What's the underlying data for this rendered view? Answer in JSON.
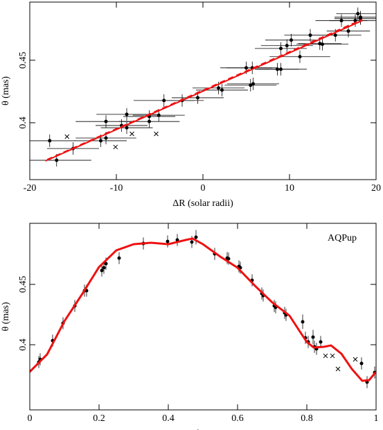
{
  "chart_data": [
    {
      "type": "scatter",
      "x_label": "ΔR (solar radii)",
      "y_label": "θ (mas)",
      "xlim": [
        -20,
        20
      ],
      "ylim": [
        0.3545,
        0.4965
      ],
      "xticks": [
        -20,
        -10,
        0,
        10,
        20
      ],
      "yticks": [
        0.4,
        0.45
      ],
      "series": [
        {
          "style": "dot",
          "color": "#000000",
          "x": [
            -17.7,
            -16.9,
            -15.0,
            -11.8,
            -11.2,
            -11.2,
            -9.4,
            -8.8,
            -8.8,
            -6.2,
            -6.2,
            -5.1,
            -4.5,
            -2.4,
            -0.6,
            1.8,
            2.2,
            5.0,
            5.5,
            5.8,
            5.7,
            8.6,
            9.0,
            9.0,
            9.7,
            10.2,
            11.2,
            12.4,
            13.5,
            13.8,
            15.3,
            16.0,
            16.8,
            17.6,
            17.9,
            18.2,
            18.2
          ],
          "values": [
            0.3856,
            0.37,
            0.3794,
            0.3856,
            0.401,
            0.3878,
            0.3978,
            0.4067,
            0.396,
            0.405,
            0.401,
            0.406,
            0.4178,
            0.4178,
            0.42,
            0.4278,
            0.4261,
            0.4439,
            0.43,
            0.4311,
            0.4439,
            0.4428,
            0.4428,
            0.4594,
            0.4617,
            0.4661,
            0.4528,
            0.47,
            0.4633,
            0.4628,
            0.47,
            0.4817,
            0.4733,
            0.4817,
            0.4872,
            0.4844,
            0.4833
          ],
          "xerr": [
            3,
            4,
            3,
            3,
            3.5,
            3.5,
            3,
            3.5,
            3,
            3,
            3.5,
            3,
            3.5,
            2.5,
            3,
            3,
            3,
            3,
            3,
            3,
            3,
            2.5,
            3,
            3,
            3,
            3,
            3.5,
            3,
            2.5,
            3,
            3,
            3,
            2.5,
            3,
            2.5,
            3,
            3
          ],
          "yerr": [
            0.005,
            0.005,
            0.005,
            0.005,
            0.005,
            0.005,
            0.005,
            0.005,
            0.005,
            0.005,
            0.005,
            0.005,
            0.005,
            0.005,
            0.005,
            0.005,
            0.005,
            0.005,
            0.005,
            0.005,
            0.005,
            0.005,
            0.005,
            0.005,
            0.005,
            0.005,
            0.005,
            0.005,
            0.005,
            0.005,
            0.005,
            0.005,
            0.005,
            0.005,
            0.005,
            0.005,
            0.005
          ]
        },
        {
          "style": "cross",
          "color": "#000000",
          "x": [
            -15.7,
            -10.1,
            -8.2,
            -5.4
          ],
          "values": [
            0.3889,
            0.3806,
            0.3911,
            0.3911
          ]
        },
        {
          "style": "line",
          "color": "#ee1111",
          "x": [
            -18.2,
            18.4
          ],
          "values": [
            0.3694,
            0.4817
          ]
        },
        {
          "style": "line",
          "dashed": true,
          "color": "#ee1111",
          "x": [
            -18.0,
            18.4
          ],
          "values": [
            0.3705,
            0.4826
          ]
        }
      ]
    },
    {
      "type": "scatter",
      "x_label": "Phase",
      "y_label": "θ (mas)",
      "annotation": "AQPup",
      "xlim": [
        0,
        1
      ],
      "ylim": [
        0.346,
        0.5006
      ],
      "xticks": [
        0,
        0.2,
        0.4,
        0.6,
        0.8,
        1
      ],
      "yticks": [
        0.4,
        0.45
      ],
      "series": [
        {
          "style": "dot",
          "color": "#000000",
          "x": [
            0.026,
            0.03,
            0.066,
            0.096,
            0.13,
            0.158,
            0.164,
            0.208,
            0.214,
            0.22,
            0.258,
            0.328,
            0.398,
            0.426,
            0.468,
            0.48,
            0.534,
            0.57,
            0.574,
            0.604,
            0.608,
            0.642,
            0.67,
            0.674,
            0.706,
            0.71,
            0.736,
            0.74,
            0.788,
            0.796,
            0.804,
            0.818,
            0.822,
            0.828,
            0.84,
            0.958,
            0.974,
            0.996
          ],
          "values": [
            0.3856,
            0.3879,
            0.4034,
            0.4178,
            0.4322,
            0.4448,
            0.4448,
            0.4615,
            0.4638,
            0.4672,
            0.4718,
            0.4839,
            0.4856,
            0.4868,
            0.4851,
            0.4891,
            0.4753,
            0.4718,
            0.4713,
            0.4649,
            0.4638,
            0.4534,
            0.4425,
            0.4408,
            0.4322,
            0.431,
            0.4264,
            0.4247,
            0.419,
            0.4057,
            0.4023,
            0.4063,
            0.3983,
            0.3966,
            0.4023,
            0.3845,
            0.369,
            0.377
          ],
          "yerr": [
            0.005,
            0.005,
            0.005,
            0.005,
            0.005,
            0.005,
            0.005,
            0.005,
            0.005,
            0.005,
            0.005,
            0.005,
            0.005,
            0.005,
            0.005,
            0.006,
            0.005,
            0.005,
            0.005,
            0.005,
            0.005,
            0.005,
            0.005,
            0.005,
            0.005,
            0.005,
            0.005,
            0.005,
            0.006,
            0.005,
            0.005,
            0.006,
            0.005,
            0.005,
            0.005,
            0.005,
            0.005,
            0.005
          ]
        },
        {
          "style": "cross",
          "color": "#000000",
          "x": [
            0.854,
            0.874,
            0.89,
            0.94
          ],
          "values": [
            0.3908,
            0.3908,
            0.3799,
            0.3879
          ]
        },
        {
          "style": "line",
          "width": 3,
          "color": "#ee1111",
          "x": [
            0,
            0.05,
            0.1,
            0.15,
            0.2,
            0.25,
            0.3,
            0.35,
            0.4,
            0.45,
            0.47,
            0.5,
            0.55,
            0.6,
            0.65,
            0.7,
            0.75,
            0.78,
            0.8,
            0.82,
            0.85,
            0.87,
            0.9,
            0.93,
            0.96,
            0.98,
            1
          ],
          "values": [
            0.3776,
            0.392,
            0.4195,
            0.4414,
            0.4644,
            0.4782,
            0.4833,
            0.4845,
            0.4833,
            0.4868,
            0.488,
            0.4833,
            0.473,
            0.4638,
            0.4489,
            0.4351,
            0.4241,
            0.4109,
            0.4023,
            0.3977,
            0.3983,
            0.3994,
            0.3925,
            0.3799,
            0.3701,
            0.3707,
            0.3776
          ]
        }
      ]
    }
  ]
}
